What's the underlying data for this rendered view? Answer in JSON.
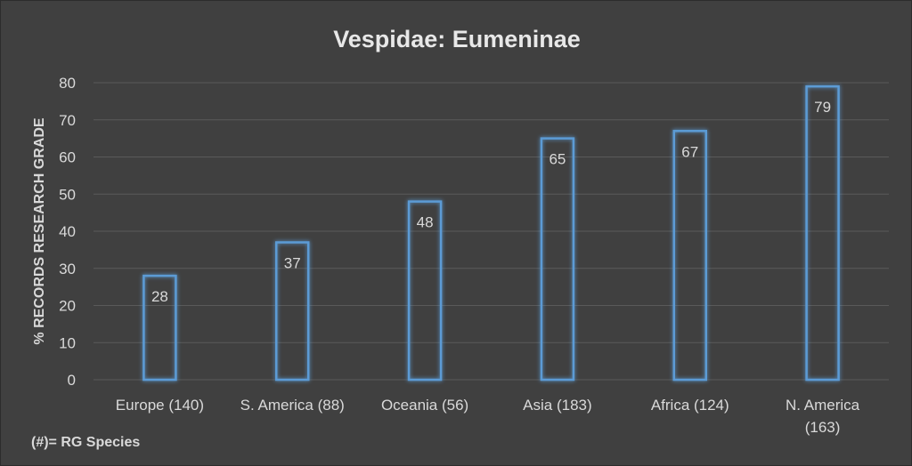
{
  "chart_data": {
    "type": "bar",
    "title": "Vespidae: Eumeninae",
    "ylabel": "% RECORDS RESEARCH GRADE",
    "xlabel": "",
    "categories": [
      [
        "Europe (140)"
      ],
      [
        "S. America (88)"
      ],
      [
        "Oceania (56)"
      ],
      [
        "Asia (183)"
      ],
      [
        "Africa (124)"
      ],
      [
        "N. America",
        "(163)"
      ]
    ],
    "values": [
      28,
      37,
      48,
      65,
      67,
      79
    ],
    "ylim": [
      0,
      80
    ],
    "yticks": [
      0,
      10,
      20,
      30,
      40,
      50,
      60,
      70,
      80
    ],
    "grid": true,
    "footnote": "(#)= RG Species",
    "colors": {
      "background": "#404040",
      "bar_outline": "#5b9bd5",
      "text": "#d9d9d9",
      "grid": "#5a5a5a"
    }
  }
}
